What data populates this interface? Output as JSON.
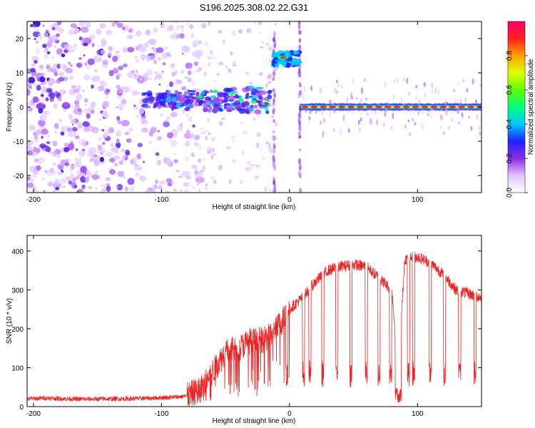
{
  "title": "S196.2025.308.02.22.G31",
  "chart_data": [
    {
      "type": "heatmap",
      "xlabel": "Height of straight line (km)",
      "ylabel": "Frequency (Hz)",
      "xlim": [
        -205,
        150
      ],
      "ylim": [
        -25,
        25
      ],
      "xticks": [
        -200,
        -100,
        0,
        100
      ],
      "yticks": [
        20,
        10,
        0,
        -10,
        -20
      ],
      "colorbar": {
        "label": "Normalized spectral amplitude",
        "range": [
          0,
          1
        ],
        "ticks": [
          0.0,
          0.2,
          0.4,
          0.6,
          0.8
        ],
        "colors": [
          "#ffffff",
          "#e3c4ff",
          "#8a2be2",
          "#2020ff",
          "#00c8ff",
          "#00ff80",
          "#60ff00",
          "#e0ff00",
          "#ffa000",
          "#ff2020",
          "#ff0060"
        ]
      },
      "features": [
        {
          "name": "noise",
          "x_range": [
            -205,
            -80
          ],
          "freq_range": [
            -25,
            25
          ],
          "amplitude": 0.2
        },
        {
          "name": "weak-signal",
          "x_range": [
            -115,
            -15
          ],
          "freq_center": 2,
          "amplitude": 0.5
        },
        {
          "name": "burst",
          "x_range": [
            -12,
            8
          ],
          "freq_center": 14,
          "amplitude": 0.7
        },
        {
          "name": "strong-signal",
          "x_range": [
            8,
            150
          ],
          "freq_center": 0,
          "amplitude": 0.9
        }
      ]
    },
    {
      "type": "line",
      "xlabel": "Height of straight line (km)",
      "ylabel": "SNR (10 * v/v)",
      "xlim": [
        -205,
        150
      ],
      "ylim": [
        0,
        440
      ],
      "xticks": [
        -200,
        -100,
        0,
        100
      ],
      "yticks": [
        0,
        100,
        200,
        300,
        400
      ],
      "series": [
        {
          "name": "SNR",
          "color": "#ee2222",
          "x": [
            -205,
            -190,
            -175,
            -160,
            -145,
            -130,
            -115,
            -100,
            -90,
            -80,
            -70,
            -60,
            -50,
            -40,
            -30,
            -20,
            -10,
            0,
            10,
            20,
            30,
            40,
            50,
            60,
            70,
            80,
            85,
            90,
            100,
            110,
            120,
            130,
            140,
            150
          ],
          "values": [
            20,
            22,
            20,
            19,
            20,
            20,
            21,
            23,
            24,
            27,
            45,
            90,
            140,
            150,
            170,
            170,
            200,
            250,
            280,
            320,
            350,
            360,
            365,
            360,
            330,
            300,
            90,
            380,
            385,
            370,
            340,
            300,
            290,
            280
          ]
        }
      ],
      "dips_x": [
        -2,
        11,
        16,
        26,
        37,
        48,
        60,
        70,
        79,
        85,
        93,
        97,
        110,
        121,
        133,
        145
      ]
    }
  ]
}
